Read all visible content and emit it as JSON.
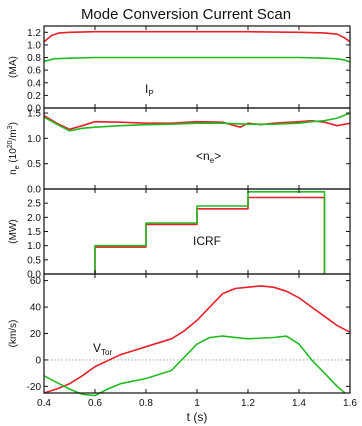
{
  "title": "Mode Conversion Current Scan",
  "chart_data": {
    "type": "line",
    "title": "Mode Conversion Current Scan",
    "xlabel": "t (s)",
    "xlim": [
      0.4,
      1.6
    ],
    "xticks": [
      "0.4",
      "0.6",
      "0.8",
      "1",
      "1.2",
      "1.4",
      "1.6"
    ],
    "colors": {
      "red": "#e8212a",
      "green": "#22bb22"
    },
    "panels": [
      {
        "id": "ip",
        "ylabel_main": "(MA)",
        "annotation_main": "I",
        "annotation_sub": "P",
        "ylim": [
          0.0,
          1.3
        ],
        "yticks": [
          "1.2",
          "1.0",
          "0.8",
          "0.6",
          "0.4",
          "0.2",
          "0.0"
        ],
        "series": [
          {
            "color": "red",
            "x": [
              0.4,
              0.43,
              0.46,
              0.5,
              0.6,
              0.8,
              1.0,
              1.2,
              1.4,
              1.5,
              1.55,
              1.58,
              1.6
            ],
            "y": [
              1.05,
              1.15,
              1.19,
              1.2,
              1.21,
              1.21,
              1.21,
              1.21,
              1.2,
              1.19,
              1.17,
              1.11,
              1.05
            ]
          },
          {
            "color": "green",
            "x": [
              0.4,
              0.44,
              0.5,
              0.6,
              0.8,
              1.0,
              1.2,
              1.4,
              1.5,
              1.55,
              1.58,
              1.6
            ],
            "y": [
              0.74,
              0.78,
              0.79,
              0.8,
              0.8,
              0.8,
              0.8,
              0.8,
              0.79,
              0.78,
              0.76,
              0.73
            ]
          }
        ]
      },
      {
        "id": "ne",
        "ylabel_main": "n",
        "ylabel_sub": "e",
        "ylabel_unit": " (10",
        "ylabel_exp": "20",
        "ylabel_unit2": "/m",
        "ylabel_exp2": "3",
        "ylabel_unit3": ")",
        "annotation_main": "<n",
        "annotation_sub": "e",
        "annotation_end": ">",
        "ylim": [
          0.0,
          1.6
        ],
        "yticks": [
          "1.5",
          "1.0",
          "0.5",
          "0.0"
        ],
        "series": [
          {
            "color": "red",
            "x": [
              0.4,
              0.45,
              0.5,
              0.55,
              0.6,
              0.7,
              0.8,
              0.9,
              1.0,
              1.1,
              1.17,
              1.2,
              1.25,
              1.3,
              1.4,
              1.45,
              1.5,
              1.55,
              1.6
            ],
            "y": [
              1.45,
              1.3,
              1.18,
              1.25,
              1.33,
              1.32,
              1.3,
              1.3,
              1.33,
              1.32,
              1.22,
              1.3,
              1.27,
              1.3,
              1.33,
              1.35,
              1.32,
              1.25,
              1.3
            ]
          },
          {
            "color": "green",
            "x": [
              0.4,
              0.45,
              0.5,
              0.55,
              0.6,
              0.7,
              0.8,
              0.9,
              1.0,
              1.1,
              1.2,
              1.3,
              1.4,
              1.45,
              1.5,
              1.55,
              1.6
            ],
            "y": [
              1.42,
              1.28,
              1.15,
              1.2,
              1.22,
              1.25,
              1.27,
              1.28,
              1.3,
              1.3,
              1.28,
              1.28,
              1.3,
              1.33,
              1.35,
              1.4,
              1.5
            ]
          }
        ]
      },
      {
        "id": "icrf",
        "ylabel_main": "(MW)",
        "annotation_main": "ICRF",
        "ylim": [
          0.0,
          3.0
        ],
        "yticks": [
          "2.5",
          "2.0",
          "1.5",
          "1.0",
          "0.5",
          "0.0"
        ],
        "series": [
          {
            "color": "red",
            "x": [
              0.6,
              0.6,
              0.8,
              0.8,
              1.0,
              1.0,
              1.2,
              1.2,
              1.5,
              1.5
            ],
            "y": [
              0.0,
              0.95,
              0.95,
              1.75,
              1.75,
              2.3,
              2.3,
              2.7,
              2.7,
              0.0
            ]
          },
          {
            "color": "green",
            "x": [
              0.6,
              0.6,
              0.8,
              0.8,
              1.0,
              1.0,
              1.2,
              1.2,
              1.5,
              1.5
            ],
            "y": [
              0.0,
              1.0,
              1.0,
              1.8,
              1.8,
              2.4,
              2.4,
              2.9,
              2.9,
              0.0
            ]
          }
        ]
      },
      {
        "id": "vtor",
        "ylabel_main": "(km/s)",
        "annotation_main": "V",
        "annotation_sub": "Tor",
        "ylim": [
          -25,
          65
        ],
        "yticks": [
          "60",
          "40",
          "20",
          "0",
          "-20"
        ],
        "zero_line": true,
        "series": [
          {
            "color": "red",
            "x": [
              0.4,
              0.45,
              0.5,
              0.55,
              0.6,
              0.7,
              0.8,
              0.9,
              0.95,
              1.0,
              1.05,
              1.1,
              1.15,
              1.2,
              1.25,
              1.3,
              1.35,
              1.4,
              1.45,
              1.5,
              1.55,
              1.6
            ],
            "y": [
              -25,
              -22,
              -18,
              -12,
              -5,
              4,
              10,
              16,
              22,
              30,
              40,
              50,
              54,
              55,
              56,
              55,
              52,
              47,
              40,
              33,
              26,
              21
            ]
          },
          {
            "color": "green",
            "x": [
              0.4,
              0.45,
              0.5,
              0.55,
              0.6,
              0.65,
              0.7,
              0.8,
              0.9,
              0.95,
              1.0,
              1.05,
              1.1,
              1.2,
              1.3,
              1.35,
              1.4,
              1.45,
              1.5,
              1.55,
              1.58
            ],
            "y": [
              -12,
              -17,
              -22,
              -26,
              -27,
              -22,
              -18,
              -14,
              -8,
              2,
              12,
              17,
              18,
              16,
              17,
              18,
              12,
              0,
              -10,
              -20,
              -25
            ]
          }
        ]
      }
    ]
  }
}
